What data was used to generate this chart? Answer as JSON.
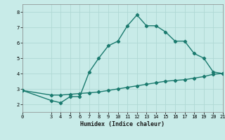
{
  "xlabel": "Humidex (Indice chaleur)",
  "ylabel": "",
  "bg_color": "#c8ebe8",
  "grid_color": "#b0d8d4",
  "line_color": "#1a7a6e",
  "line1_x": [
    0,
    3,
    4,
    5,
    6,
    7,
    8,
    9,
    10,
    11,
    12,
    13,
    14,
    15,
    16,
    17,
    18,
    19,
    20,
    21
  ],
  "line1_y": [
    2.9,
    2.25,
    2.1,
    2.5,
    2.5,
    4.1,
    5.0,
    5.8,
    6.1,
    7.1,
    7.8,
    7.1,
    7.1,
    6.7,
    6.1,
    6.1,
    5.3,
    5.0,
    4.1,
    4.0
  ],
  "line2_x": [
    0,
    3,
    4,
    5,
    6,
    7,
    8,
    9,
    10,
    11,
    12,
    13,
    14,
    15,
    16,
    17,
    18,
    19,
    20,
    21
  ],
  "line2_y": [
    2.9,
    2.6,
    2.6,
    2.65,
    2.7,
    2.75,
    2.8,
    2.9,
    3.0,
    3.1,
    3.2,
    3.3,
    3.4,
    3.5,
    3.55,
    3.6,
    3.7,
    3.8,
    3.95,
    4.0
  ],
  "xlim": [
    0,
    21
  ],
  "ylim": [
    1.5,
    8.5
  ],
  "yticks": [
    2,
    3,
    4,
    5,
    6,
    7,
    8
  ],
  "xticks": [
    0,
    3,
    4,
    5,
    6,
    7,
    8,
    9,
    10,
    11,
    12,
    13,
    14,
    15,
    16,
    17,
    18,
    19,
    20,
    21
  ],
  "marker": "D",
  "markersize": 2.2,
  "linewidth": 1.0
}
